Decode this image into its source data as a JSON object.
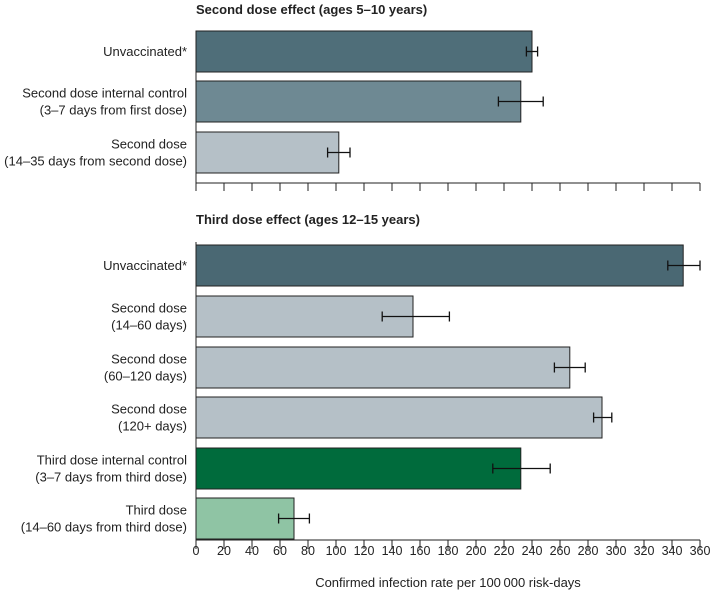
{
  "chart_data": [
    {
      "type": "bar",
      "orientation": "horizontal",
      "title": "Second dose effect (ages 5–10 years)",
      "xlim": [
        0,
        360
      ],
      "tick_step": 20,
      "tick_labels": [],
      "bars": [
        {
          "label_lines": [
            "Unvaccinated*"
          ],
          "value": 240,
          "ci_low": 236,
          "ci_high": 244,
          "color": "#4f6e79"
        },
        {
          "label_lines": [
            "Second dose internal control",
            "(3–7 days from first dose)"
          ],
          "value": 232,
          "ci_low": 216,
          "ci_high": 248,
          "color": "#6e8993"
        },
        {
          "label_lines": [
            "Second dose",
            "(14–35 days from second dose)"
          ],
          "value": 102,
          "ci_low": 94,
          "ci_high": 110,
          "color": "#b5c0c7"
        }
      ]
    },
    {
      "type": "bar",
      "orientation": "horizontal",
      "title": "Third dose effect (ages 12–15 years)",
      "xlim": [
        0,
        360
      ],
      "tick_step": 20,
      "tick_labels": [
        "0",
        "20",
        "40",
        "60",
        "80",
        "100",
        "120",
        "140",
        "160",
        "180",
        "200",
        "220",
        "240",
        "260",
        "280",
        "300",
        "320",
        "340",
        "360"
      ],
      "xlabel": "Confirmed infection rate per 100 000 risk-days",
      "bars": [
        {
          "label_lines": [
            "Unvaccinated*"
          ],
          "value": 348,
          "ci_low": 337,
          "ci_high": 360,
          "color": "#4a6873"
        },
        {
          "label_lines": [
            "Second dose",
            "(14–60 days)"
          ],
          "value": 155,
          "ci_low": 133,
          "ci_high": 181,
          "color": "#b5c0c7"
        },
        {
          "label_lines": [
            "Second dose",
            "(60–120 days)"
          ],
          "value": 267,
          "ci_low": 256,
          "ci_high": 278,
          "color": "#b5c0c7"
        },
        {
          "label_lines": [
            "Second dose",
            "(120+ days)"
          ],
          "value": 290,
          "ci_low": 284,
          "ci_high": 297,
          "color": "#b5c0c7"
        },
        {
          "label_lines": [
            "Third dose internal control",
            "(3–7 days from third dose)"
          ],
          "value": 232,
          "ci_low": 212,
          "ci_high": 253,
          "color": "#006b3c"
        },
        {
          "label_lines": [
            "Third dose",
            "(14–60 days from third dose)"
          ],
          "value": 70,
          "ci_low": 59,
          "ci_high": 81,
          "color": "#8fc4a4"
        }
      ]
    }
  ]
}
